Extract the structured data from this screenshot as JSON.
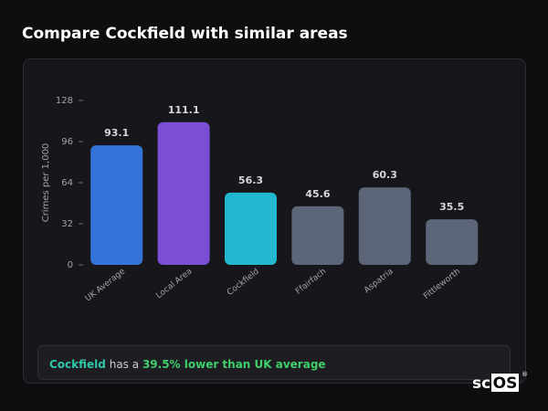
{
  "chart_data": {
    "type": "bar",
    "title": "Compare Cockfield with similar areas",
    "y_label": "Crimes per 1,000",
    "categories": [
      "UK Average",
      "Local Area",
      "Cockfield",
      "Ffairfach",
      "Aspatria",
      "Fittleworth"
    ],
    "values": [
      93.1,
      111.1,
      56.3,
      45.6,
      60.3,
      35.5
    ],
    "colors": [
      "#3474d8",
      "#7a4fd6",
      "#22b8cf",
      "#5c6678",
      "#5c6678",
      "#5c6678"
    ],
    "ylim": [
      0,
      128
    ],
    "yticks": [
      0,
      32,
      64,
      96,
      128
    ]
  },
  "summary": {
    "area": "Cockfield",
    "text": "has a",
    "highlight": "39.5% lower than UK average"
  },
  "logo": {
    "prefix": "sc",
    "box": "OS",
    "mark": "®"
  }
}
